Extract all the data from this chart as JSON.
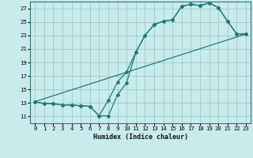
{
  "xlabel": "Humidex (Indice chaleur)",
  "bg_color": "#c8ecec",
  "grid_color": "#a0c8c8",
  "line_color": "#267878",
  "xlim": [
    -0.5,
    23.5
  ],
  "ylim": [
    10.0,
    28.0
  ],
  "yticks": [
    11,
    13,
    15,
    17,
    19,
    21,
    23,
    25,
    27
  ],
  "xticks": [
    0,
    1,
    2,
    3,
    4,
    5,
    6,
    7,
    8,
    9,
    10,
    11,
    12,
    13,
    14,
    15,
    16,
    17,
    18,
    19,
    20,
    21,
    22,
    23
  ],
  "line1_x": [
    0,
    1,
    2,
    3,
    4,
    5,
    6,
    7,
    8,
    9,
    10,
    11,
    12,
    13,
    14,
    15,
    16,
    17,
    18,
    19,
    20,
    21,
    22,
    23
  ],
  "line1_y": [
    13.2,
    12.9,
    12.9,
    12.7,
    12.7,
    12.6,
    12.5,
    11.1,
    13.4,
    16.1,
    17.6,
    20.5,
    23.0,
    24.6,
    25.1,
    25.3,
    27.3,
    27.6,
    27.4,
    27.8,
    27.1,
    25.1,
    23.2,
    23.2
  ],
  "line2_x": [
    0,
    1,
    2,
    3,
    4,
    5,
    6,
    7,
    8,
    9,
    10,
    11,
    12,
    13,
    14,
    15,
    16,
    17,
    18,
    19,
    20,
    21,
    22,
    23
  ],
  "line2_y": [
    13.2,
    12.9,
    12.9,
    12.7,
    12.7,
    12.6,
    12.5,
    11.1,
    11.1,
    14.2,
    16.0,
    20.5,
    23.0,
    24.6,
    25.1,
    25.3,
    27.3,
    27.6,
    27.4,
    27.8,
    27.1,
    25.1,
    23.2,
    23.2
  ],
  "line3_x": [
    0,
    23
  ],
  "line3_y": [
    13.2,
    23.2
  ],
  "xlabel_fontsize": 6.0,
  "tick_fontsize": 5.2
}
